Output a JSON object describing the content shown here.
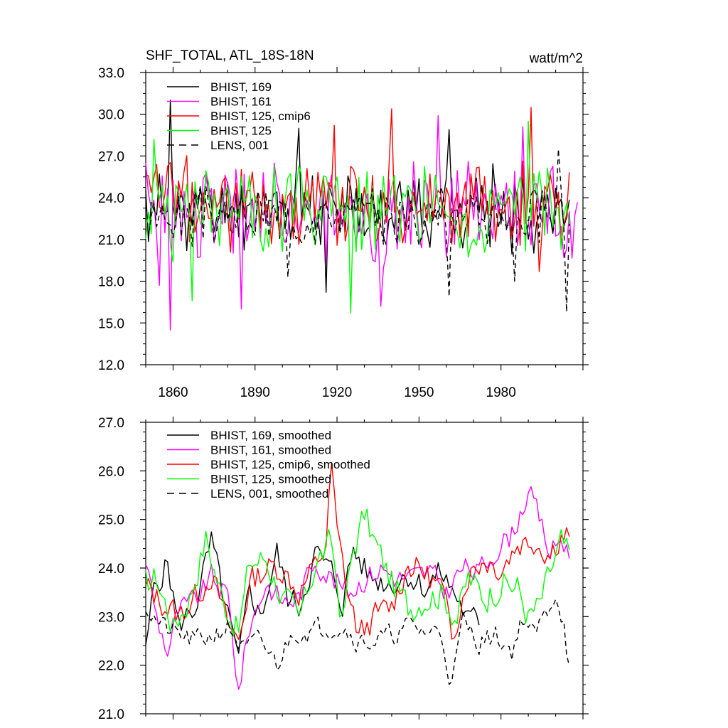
{
  "chart_data": [
    {
      "type": "line",
      "title": "SHF_TOTAL, ATL_18S-18N",
      "units": "watt/m^2",
      "xlabel": "",
      "ylabel": "",
      "xlim": [
        1850,
        2010
      ],
      "ylim": [
        12.0,
        33.0
      ],
      "xticks": [
        1860,
        1890,
        1920,
        1950,
        1980
      ],
      "xtick_labels": [
        "1860",
        "1890",
        "1920",
        "1950",
        "1980"
      ],
      "yticks": [
        12.0,
        15.0,
        18.0,
        21.0,
        24.0,
        27.0,
        30.0,
        33.0
      ],
      "ytick_labels": [
        "12.0",
        "15.0",
        "18.0",
        "21.0",
        "24.0",
        "27.0",
        "30.0",
        "33.0"
      ],
      "legend_position": "top-left",
      "series": [
        {
          "name": "BHIST, 169",
          "label": "BHIST, 169",
          "color": "#000000",
          "dash": "solid",
          "x_start": 1850,
          "x_end": 2005,
          "n": 156,
          "mean": 23.2,
          "amp": 2.2,
          "seed": 11,
          "spikes": [
            [
              1859,
              31.0
            ],
            [
              1916,
              17.2
            ],
            [
              1906,
              29.0
            ],
            [
              1961,
              28.9
            ]
          ]
        },
        {
          "name": "BHIST, 161",
          "label": "BHIST, 161",
          "color": "#ff00ff",
          "dash": "solid",
          "x_start": 1850,
          "x_end": 2008,
          "n": 159,
          "mean": 23.0,
          "amp": 2.9,
          "seed": 23,
          "spikes": [
            [
              1859,
              14.5
            ],
            [
              1855,
              17.7
            ],
            [
              1885,
              16.0
            ],
            [
              1936,
              16.2
            ],
            [
              1957,
              29.9
            ],
            [
              1988,
              29.1
            ]
          ]
        },
        {
          "name": "BHIST, 125, cmip6",
          "label": "BHIST, 125, cmip6",
          "color": "#ff0000",
          "dash": "solid",
          "x_start": 1850,
          "x_end": 2005,
          "n": 156,
          "mean": 23.7,
          "amp": 2.6,
          "seed": 37,
          "spikes": [
            [
              1940,
              30.4
            ],
            [
              1991,
              30.5
            ],
            [
              1919,
              29.2
            ],
            [
              1994,
              18.7
            ]
          ]
        },
        {
          "name": "BHIST, 125",
          "label": "BHIST, 125",
          "color": "#00ff00",
          "dash": "solid",
          "x_start": 1850,
          "x_end": 2005,
          "n": 156,
          "mean": 23.0,
          "amp": 2.8,
          "seed": 51,
          "spikes": [
            [
              1853,
              28.2
            ],
            [
              1867,
              16.6
            ],
            [
              1925,
              15.7
            ],
            [
              1990,
              29.5
            ]
          ]
        },
        {
          "name": "LENS, 001",
          "label": "LENS, 001",
          "color": "#000000",
          "dash": "dashed",
          "x_start": 1850,
          "x_end": 2005,
          "n": 156,
          "mean": 22.8,
          "amp": 1.6,
          "seed": 67,
          "spikes": [
            [
              1902,
              18.3
            ],
            [
              1961,
              16.9
            ],
            [
              1985,
              18.0
            ],
            [
              2004,
              15.8
            ],
            [
              2001,
              27.5
            ]
          ]
        }
      ]
    },
    {
      "type": "line",
      "title": "",
      "xlabel": "",
      "ylabel": "",
      "xlim": [
        1850,
        2010
      ],
      "ylim": [
        21.0,
        27.0
      ],
      "yticks": [
        21.0,
        22.0,
        23.0,
        24.0,
        25.0,
        26.0,
        27.0
      ],
      "ytick_labels": [
        "21.0",
        "22.0",
        "23.0",
        "24.0",
        "25.0",
        "26.0",
        "27.0"
      ],
      "legend_position": "top-left",
      "series": [
        {
          "name": "BHIST, 169, smoothed",
          "label": "BHIST, 169, smoothed",
          "color": "#000000",
          "dash": "solid",
          "x_start": 1850,
          "x_end": 2005,
          "n": 156,
          "anchors": [
            [
              1850,
              22.2
            ],
            [
              1853,
              23.6
            ],
            [
              1858,
              24.1
            ],
            [
              1862,
              22.8
            ],
            [
              1868,
              23.2
            ],
            [
              1874,
              24.5
            ],
            [
              1880,
              23.0
            ],
            [
              1884,
              22.0
            ],
            [
              1888,
              23.6
            ],
            [
              1892,
              23.0
            ],
            [
              1898,
              24.3
            ],
            [
              1902,
              23.4
            ],
            [
              1906,
              23.2
            ],
            [
              1912,
              24.3
            ],
            [
              1918,
              23.9
            ],
            [
              1922,
              23.3
            ],
            [
              1926,
              24.4
            ],
            [
              1932,
              23.8
            ],
            [
              1940,
              23.7
            ],
            [
              1946,
              23.9
            ],
            [
              1952,
              23.6
            ],
            [
              1958,
              23.9
            ],
            [
              1964,
              23.4
            ],
            [
              1968,
              22.9
            ],
            [
              1972,
              null
            ]
          ],
          "amp": 0.4,
          "seed": 5
        },
        {
          "name": "BHIST, 161, smoothed",
          "label": "BHIST, 161, smoothed",
          "color": "#ff00ff",
          "dash": "solid",
          "x_start": 1850,
          "x_end": 2005,
          "n": 156,
          "anchors": [
            [
              1850,
              24.2
            ],
            [
              1854,
              23.0
            ],
            [
              1858,
              22.3
            ],
            [
              1862,
              23.1
            ],
            [
              1868,
              23.3
            ],
            [
              1874,
              23.8
            ],
            [
              1880,
              23.4
            ],
            [
              1884,
              21.5
            ],
            [
              1888,
              22.8
            ],
            [
              1894,
              23.7
            ],
            [
              1900,
              23.3
            ],
            [
              1906,
              23.4
            ],
            [
              1912,
              24.2
            ],
            [
              1918,
              23.8
            ],
            [
              1924,
              23.5
            ],
            [
              1930,
              23.8
            ],
            [
              1936,
              24.0
            ],
            [
              1942,
              23.8
            ],
            [
              1948,
              23.8
            ],
            [
              1954,
              23.9
            ],
            [
              1960,
              23.5
            ],
            [
              1966,
              24.0
            ],
            [
              1972,
              23.9
            ],
            [
              1978,
              24.4
            ],
            [
              1984,
              24.7
            ],
            [
              1990,
              25.6
            ],
            [
              1994,
              25.0
            ],
            [
              1998,
              24.3
            ],
            [
              2002,
              24.6
            ],
            [
              2005,
              24.4
            ]
          ],
          "amp": 0.35,
          "seed": 9
        },
        {
          "name": "BHIST, 125, cmip6, smoothed",
          "label": "BHIST, 125, cmip6, smoothed",
          "color": "#ff0000",
          "dash": "solid",
          "x_start": 1850,
          "x_end": 2005,
          "n": 156,
          "anchors": [
            [
              1850,
              23.6
            ],
            [
              1856,
              23.3
            ],
            [
              1862,
              23.0
            ],
            [
              1868,
              23.4
            ],
            [
              1874,
              23.9
            ],
            [
              1880,
              22.8
            ],
            [
              1884,
              22.5
            ],
            [
              1888,
              23.7
            ],
            [
              1894,
              24.0
            ],
            [
              1900,
              24.0
            ],
            [
              1906,
              23.5
            ],
            [
              1912,
              24.0
            ],
            [
              1916,
              24.5
            ],
            [
              1918,
              26.1
            ],
            [
              1920,
              24.7
            ],
            [
              1924,
              23.5
            ],
            [
              1928,
              22.6
            ],
            [
              1934,
              23.0
            ],
            [
              1940,
              23.2
            ],
            [
              1946,
              24.1
            ],
            [
              1952,
              23.9
            ],
            [
              1958,
              23.6
            ],
            [
              1962,
              22.6
            ],
            [
              1968,
              23.9
            ],
            [
              1974,
              24.2
            ],
            [
              1980,
              24.0
            ],
            [
              1986,
              24.5
            ],
            [
              1992,
              24.6
            ],
            [
              1998,
              24.3
            ],
            [
              2002,
              24.7
            ]
          ],
          "amp": 0.4,
          "seed": 13
        },
        {
          "name": "BHIST, 125, smoothed",
          "label": "BHIST, 125, smoothed",
          "color": "#00ff00",
          "dash": "solid",
          "x_start": 1850,
          "x_end": 2005,
          "n": 156,
          "anchors": [
            [
              1850,
              23.7
            ],
            [
              1854,
              23.8
            ],
            [
              1860,
              22.8
            ],
            [
              1866,
              23.4
            ],
            [
              1872,
              24.6
            ],
            [
              1878,
              23.4
            ],
            [
              1884,
              22.7
            ],
            [
              1888,
              24.1
            ],
            [
              1894,
              24.2
            ],
            [
              1900,
              23.4
            ],
            [
              1906,
              22.9
            ],
            [
              1912,
              24.1
            ],
            [
              1918,
              24.5
            ],
            [
              1922,
              22.9
            ],
            [
              1926,
              24.4
            ],
            [
              1930,
              25.1
            ],
            [
              1934,
              24.5
            ],
            [
              1940,
              23.7
            ],
            [
              1946,
              23.2
            ],
            [
              1952,
              23.4
            ],
            [
              1958,
              23.5
            ],
            [
              1964,
              23.0
            ],
            [
              1968,
              23.8
            ],
            [
              1974,
              23.4
            ],
            [
              1980,
              23.7
            ],
            [
              1986,
              23.6
            ],
            [
              1990,
              23.0
            ],
            [
              1994,
              23.2
            ],
            [
              1998,
              23.9
            ],
            [
              2002,
              24.5
            ],
            [
              2005,
              24.2
            ]
          ],
          "amp": 0.45,
          "seed": 17
        },
        {
          "name": "LENS, 001, smoothed",
          "label": "LENS, 001, smoothed",
          "color": "#000000",
          "dash": "dashed",
          "x_start": 1850,
          "x_end": 2005,
          "n": 156,
          "anchors": [
            [
              1850,
              23.2
            ],
            [
              1856,
              22.8
            ],
            [
              1862,
              22.6
            ],
            [
              1868,
              22.5
            ],
            [
              1874,
              22.6
            ],
            [
              1880,
              22.8
            ],
            [
              1886,
              22.3
            ],
            [
              1892,
              22.5
            ],
            [
              1898,
              22.0
            ],
            [
              1904,
              22.7
            ],
            [
              1910,
              22.7
            ],
            [
              1916,
              22.8
            ],
            [
              1922,
              22.8
            ],
            [
              1928,
              22.5
            ],
            [
              1934,
              22.5
            ],
            [
              1940,
              22.6
            ],
            [
              1946,
              22.8
            ],
            [
              1952,
              22.7
            ],
            [
              1958,
              22.7
            ],
            [
              1962,
              21.6
            ],
            [
              1966,
              22.9
            ],
            [
              1972,
              22.5
            ],
            [
              1978,
              22.6
            ],
            [
              1984,
              22.3
            ],
            [
              1988,
              23.0
            ],
            [
              1992,
              22.6
            ],
            [
              1996,
              23.0
            ],
            [
              2000,
              23.5
            ],
            [
              2003,
              22.9
            ],
            [
              2005,
              21.9
            ]
          ],
          "amp": 0.3,
          "seed": 21
        }
      ]
    }
  ]
}
